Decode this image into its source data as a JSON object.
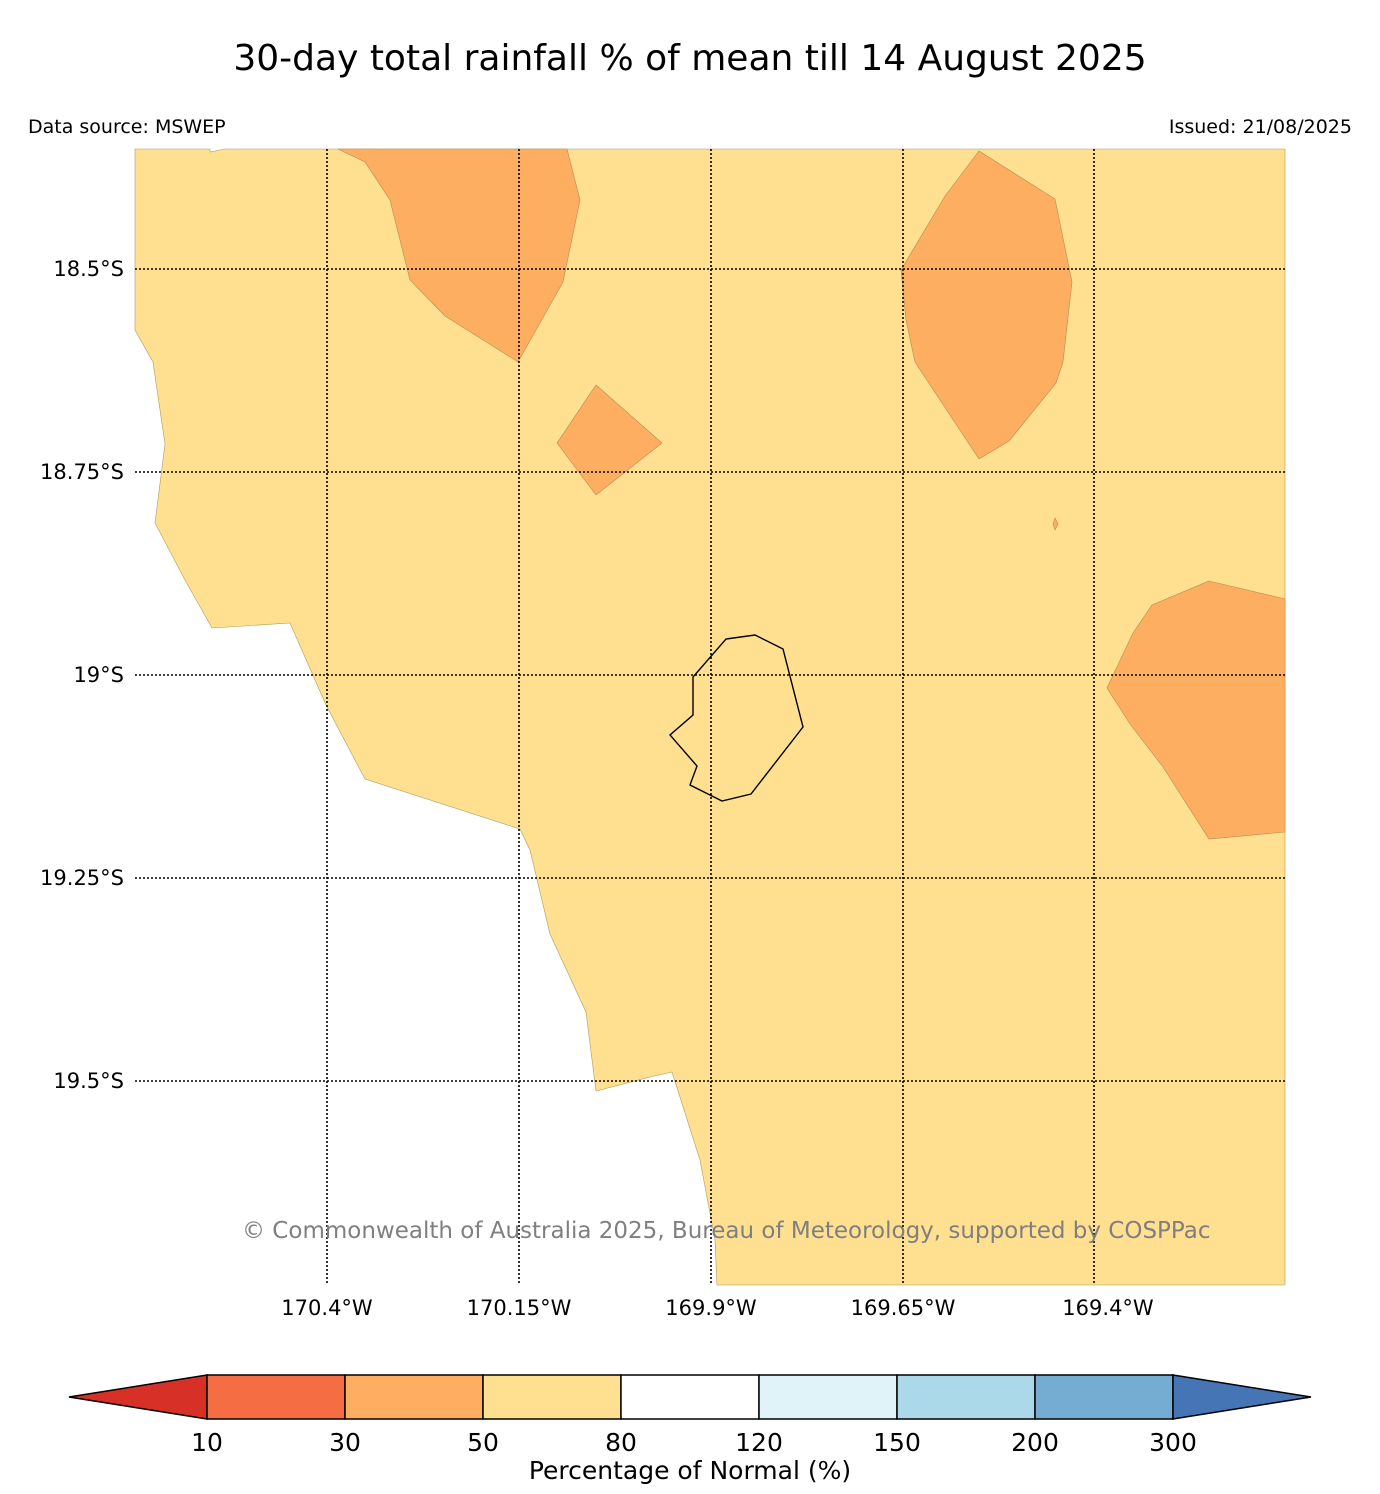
{
  "title": "30-day total rainfall % of mean till 14 August 2025",
  "data_source": "Data source: MSWEP",
  "issued": "Issued: 21/08/2025",
  "copyright": "© Commonwealth of Australia 2025, Bureau of Meteorology, supported by COSPPac",
  "latitude_labels": [
    "18.5°S",
    "18.75°S",
    "19°S",
    "19.25°S",
    "19.5°S"
  ],
  "longitude_labels": [
    "170.4°W",
    "170.15°W",
    "169.9°W",
    "169.65°W",
    "169.4°W"
  ],
  "colorbar": {
    "label": "Percentage of Normal (%)",
    "ticks": [
      "10",
      "30",
      "50",
      "80",
      "120",
      "150",
      "200",
      "300"
    ],
    "colors": {
      "below_10": "#d73027",
      "10_30": "#f46d43",
      "30_50": "#fdae61",
      "50_80": "#fee090",
      "80_120": "#ffffff",
      "120_150": "#e0f3f8",
      "150_200": "#abd9e9",
      "200_300": "#74add1",
      "above_300": "#4575b4"
    }
  },
  "map_colors": {
    "background_category": "#fee090",
    "patch_category": "#fdae61",
    "island_outline": "#000000",
    "gridline": "#000000"
  }
}
